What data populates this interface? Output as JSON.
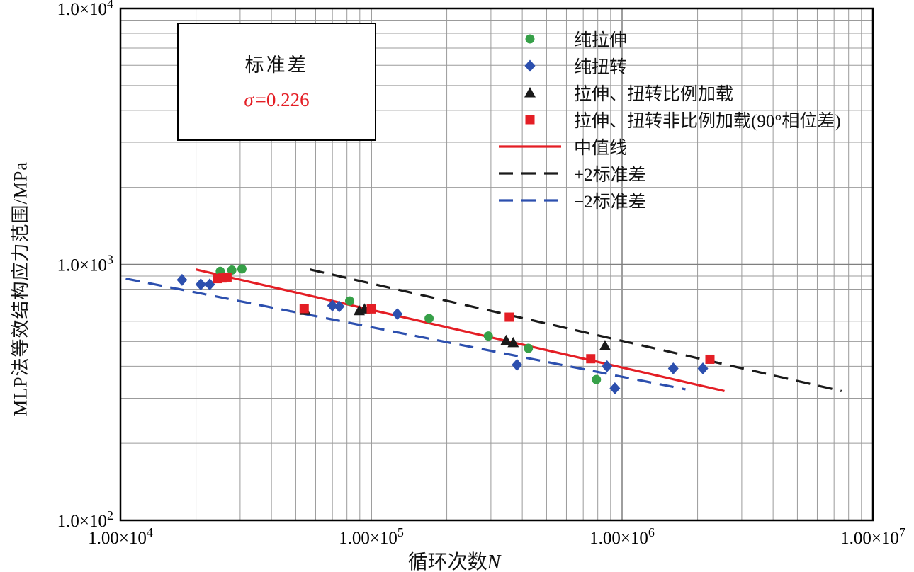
{
  "figure": {
    "background": "#ffffff",
    "ylabel": "MLP法等效结构应力范围/MPa",
    "xlabel_text": "循环次数",
    "xlabel_var": "N",
    "annotation": {
      "title": "标准差",
      "sigma": "σ",
      "value": "=0.226",
      "color": "#e41e25"
    }
  },
  "chart_data": {
    "type": "scatter",
    "title": "",
    "xlabel": "循环次数N",
    "ylabel": "MLP法等效结构应力范围/MPa",
    "x_scale": "log",
    "y_scale": "log",
    "xlim": [
      10000,
      10000000
    ],
    "ylim": [
      100,
      10000
    ],
    "grid": true,
    "legend_position": "top-right",
    "x_ticks": [
      {
        "value": 10000,
        "label": "1.00×10",
        "exp": "4"
      },
      {
        "value": 100000,
        "label": "1.00×10",
        "exp": "5"
      },
      {
        "value": 1000000,
        "label": "1.00×10",
        "exp": "6"
      },
      {
        "value": 10000000,
        "label": "1.00×10",
        "exp": "7"
      }
    ],
    "y_ticks": [
      {
        "value": 100,
        "label": "1.0×10",
        "exp": "2"
      },
      {
        "value": 1000,
        "label": "1.0×10",
        "exp": "3"
      },
      {
        "value": 10000,
        "label": "1.0×10",
        "exp": "4"
      }
    ],
    "series": [
      {
        "id": "pure-tension",
        "name": "纯拉伸",
        "marker": "circle",
        "color": "#36a048",
        "points": [
          [
            25000,
            940
          ],
          [
            27800,
            950
          ],
          [
            30500,
            960
          ],
          [
            82000,
            720
          ],
          [
            170000,
            615
          ],
          [
            293000,
            525
          ],
          [
            423000,
            470
          ],
          [
            790000,
            355
          ]
        ]
      },
      {
        "id": "pure-torsion",
        "name": "纯扭转",
        "marker": "diamond",
        "color": "#2c4fae",
        "points": [
          [
            17600,
            870
          ],
          [
            20900,
            835
          ],
          [
            22700,
            835
          ],
          [
            70000,
            690
          ],
          [
            74500,
            685
          ],
          [
            127000,
            640
          ],
          [
            381000,
            405
          ],
          [
            871000,
            400
          ],
          [
            936000,
            328
          ],
          [
            1600000,
            392
          ],
          [
            2100000,
            392
          ]
        ]
      },
      {
        "id": "proportional-loading",
        "name": "拉伸、扭转比例加载",
        "marker": "triangle",
        "color": "#1a1a1a",
        "points": [
          [
            54500,
            662
          ],
          [
            89500,
            660
          ],
          [
            94000,
            670
          ],
          [
            345000,
            505
          ],
          [
            368000,
            495
          ],
          [
            855000,
            482
          ]
        ]
      },
      {
        "id": "nonproportional-loading",
        "name": "拉伸、扭转非比例加载(90°相位差)",
        "marker": "square",
        "color": "#e41e25",
        "points": [
          [
            24300,
            880
          ],
          [
            25400,
            885
          ],
          [
            26600,
            892
          ],
          [
            54000,
            672
          ],
          [
            100000,
            670
          ],
          [
            355000,
            622
          ],
          [
            750000,
            428
          ],
          [
            2240000,
            426
          ]
        ]
      }
    ],
    "lines": [
      {
        "id": "median-line",
        "name": "中值线",
        "style": "solid",
        "color": "#e41e25",
        "points": [
          [
            20000,
            955
          ],
          [
            2560000,
            320
          ]
        ]
      },
      {
        "id": "plus-2-sigma-line",
        "name": "+2标准差",
        "style": "dashed",
        "color": "#1a1a1a",
        "points": [
          [
            57000,
            955
          ],
          [
            7500000,
            320
          ]
        ]
      },
      {
        "id": "minus-2-sigma-line",
        "name": "−2标准差",
        "style": "dashed",
        "color": "#2c4fae",
        "points": [
          [
            10500,
            880
          ],
          [
            1790000,
            325
          ]
        ]
      }
    ],
    "annotation": {
      "title": "标准差",
      "text": "σ=0.226"
    }
  },
  "legend": {
    "items": [
      {
        "id": "pure-tension",
        "type": "marker",
        "marker": "circle",
        "color": "#36a048",
        "label": "纯拉伸"
      },
      {
        "id": "pure-torsion",
        "type": "marker",
        "marker": "diamond",
        "color": "#2c4fae",
        "label": "纯扭转"
      },
      {
        "id": "proportional-loading",
        "type": "marker",
        "marker": "triangle",
        "color": "#1a1a1a",
        "label": "拉伸、扭转比例加载"
      },
      {
        "id": "nonproportional-loading",
        "type": "marker",
        "marker": "square",
        "color": "#e41e25",
        "label": "拉伸、扭转非比例加载(90°相位差)"
      },
      {
        "id": "median-line",
        "type": "line",
        "style": "solid",
        "color": "#e41e25",
        "label": "中值线"
      },
      {
        "id": "plus-2-sigma-line",
        "type": "line",
        "style": "dashed",
        "color": "#1a1a1a",
        "label": "+2标准差"
      },
      {
        "id": "minus-2-sigma-line",
        "type": "line",
        "style": "dashed",
        "color": "#2c4fae",
        "label": "−2标准差"
      }
    ]
  }
}
